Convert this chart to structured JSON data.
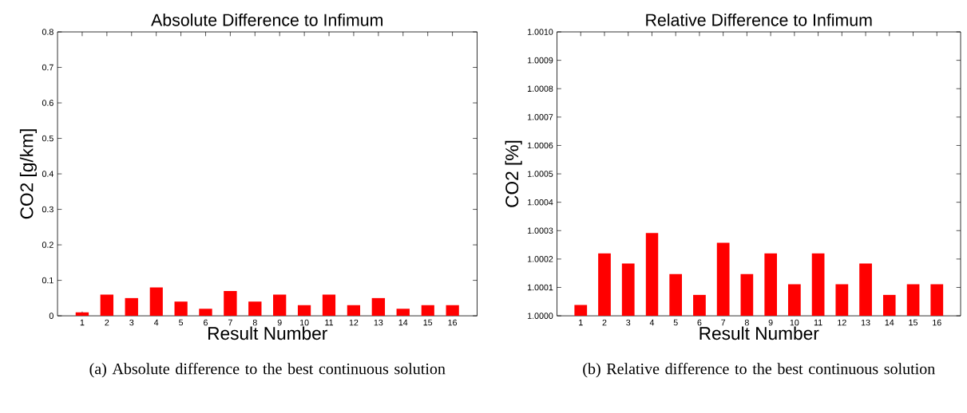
{
  "chart_data": [
    {
      "type": "bar",
      "title": "Absolute Difference to Infimum",
      "xlabel": "Result Number",
      "ylabel": "CO2 [g/km]",
      "categories": [
        "1",
        "2",
        "3",
        "4",
        "5",
        "6",
        "7",
        "8",
        "9",
        "10",
        "11",
        "12",
        "13",
        "14",
        "15",
        "16"
      ],
      "values": [
        0.01,
        0.06,
        0.05,
        0.08,
        0.04,
        0.02,
        0.07,
        0.04,
        0.06,
        0.03,
        0.06,
        0.03,
        0.05,
        0.02,
        0.03,
        0.03
      ],
      "color": "#ff0000",
      "ylim": [
        0,
        0.8
      ],
      "yticks": [
        0,
        0.1,
        0.2,
        0.3,
        0.4,
        0.5,
        0.6,
        0.7,
        0.8
      ],
      "annotations": [
        "(a) Absolute difference to the best continuous solution"
      ]
    },
    {
      "type": "bar",
      "title": "Relative Difference to Infimum",
      "xlabel": "Result Number",
      "ylabel": "CO2 [%]",
      "categories": [
        "1",
        "2",
        "3",
        "4",
        "5",
        "6",
        "7",
        "8",
        "9",
        "10",
        "11",
        "12",
        "13",
        "14",
        "15",
        "16"
      ],
      "values": [
        1.000038,
        1.00022,
        1.000184,
        1.000292,
        1.000147,
        1.000074,
        1.000257,
        1.000147,
        1.00022,
        1.000111,
        1.00022,
        1.000111,
        1.000184,
        1.000074,
        1.000111,
        1.000111
      ],
      "color": "#ff0000",
      "ylim": [
        1.0,
        1.001
      ],
      "yticks": [
        {
          "value": 1.0,
          "label": "1.0000"
        },
        {
          "value": 1.0001,
          "label": "1.0001"
        },
        {
          "value": 1.0002,
          "label": "1.0002"
        },
        {
          "value": 1.0003,
          "label": "1.0003"
        },
        {
          "value": 1.0004,
          "label": "1.0004"
        },
        {
          "value": 1.0005,
          "label": "1.0005"
        },
        {
          "value": 1.0006,
          "label": "1.0006"
        },
        {
          "value": 1.0007,
          "label": "1.0007"
        },
        {
          "value": 1.0008,
          "label": "1.0008"
        },
        {
          "value": 1.0009,
          "label": "1.0009"
        },
        {
          "value": 1.001,
          "label": "1.0010"
        }
      ],
      "annotations": [
        "(b) Relative difference to the best continuous solution"
      ]
    }
  ]
}
